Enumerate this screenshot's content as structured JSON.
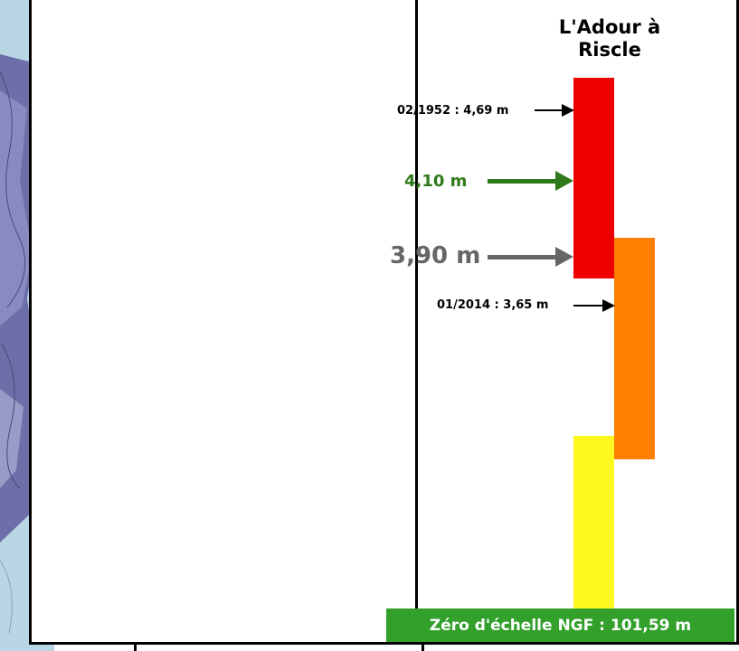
{
  "title": "L'Adour à Riscle",
  "markers": {
    "record_1952": "02/1952 : 4,69 m",
    "level_green": "4,10 m",
    "level_gray": "3,90 m",
    "record_2014": "01/2014 : 3,65 m"
  },
  "footer": "Zéro d'échelle NGF : 101,59 m",
  "colors": {
    "red": "#ee0000",
    "orange": "#ff7f00",
    "yellow": "#fff820",
    "green": "#2e7a1a",
    "gray": "#666666",
    "footer_bg": "#33a02c"
  }
}
